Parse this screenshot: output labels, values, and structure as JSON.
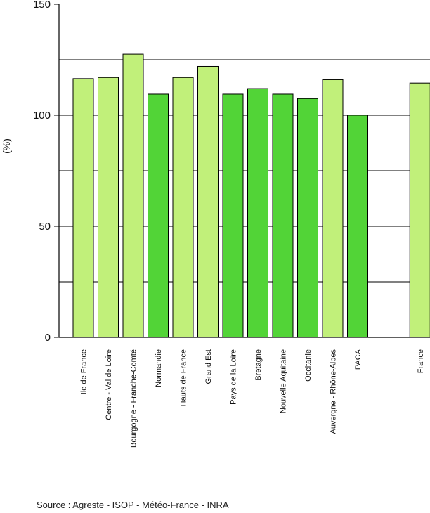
{
  "chart_data": {
    "type": "bar",
    "ylabel": "(%)",
    "ylim": [
      0,
      150
    ],
    "yticks": [
      0,
      50,
      100,
      150
    ],
    "gridlines": [
      25,
      50,
      75,
      100,
      125
    ],
    "categories": [
      "Ile de France",
      "Centre - Val de Loire",
      "Bourgogne - Franche-Comté",
      "Normandie",
      "Hauts de France",
      "Grand Est",
      "Pays de la Loire",
      "Bretagne",
      "Nouvelle Aquitaine",
      "Occitanie",
      "Auvergne - Rhône-Alpes",
      "PACA",
      "France"
    ],
    "values": [
      116.5,
      117,
      127.5,
      109.5,
      117,
      122,
      109.5,
      112,
      109.5,
      107.5,
      116,
      100,
      114.5
    ],
    "bar_colors": [
      "#c1f07a",
      "#c1f07a",
      "#c1f07a",
      "#52d437",
      "#c1f07a",
      "#c1f07a",
      "#52d437",
      "#52d437",
      "#52d437",
      "#52d437",
      "#c1f07a",
      "#52d437",
      "#c1f07a"
    ],
    "grid": true,
    "legend": false
  },
  "source_text": "Source : Agreste - ISOP - Météo-France - INRA"
}
